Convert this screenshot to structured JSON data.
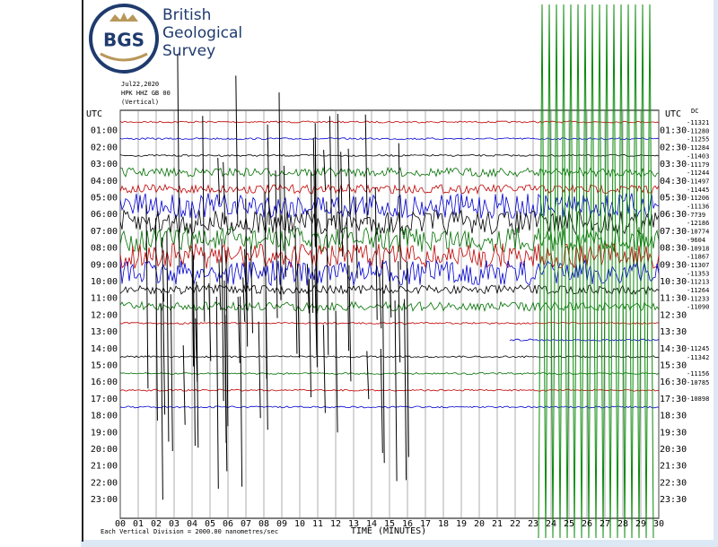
{
  "logo": {
    "mark": "BGS",
    "name": [
      "British",
      "Geological",
      "Survey"
    ]
  },
  "header": {
    "date": "Jul22,2020",
    "station": "HPK HHZ GB 00",
    "component": "(Vertical)"
  },
  "left_axis": {
    "title": "UTC",
    "labels": [
      "01:00",
      "02:00",
      "03:00",
      "04:00",
      "05:00",
      "06:00",
      "07:00",
      "08:00",
      "09:00",
      "10:00",
      "11:00",
      "12:00",
      "13:00",
      "14:00",
      "15:00",
      "16:00",
      "17:00",
      "18:00",
      "19:00",
      "20:00",
      "21:00",
      "22:00",
      "23:00"
    ]
  },
  "right_axis": {
    "title": "UTC",
    "labels": [
      "01:30",
      "02:30",
      "03:30",
      "04:30",
      "05:30",
      "06:30",
      "07:30",
      "08:30",
      "09:30",
      "10:30",
      "11:30",
      "12:30",
      "13:30",
      "14:30",
      "15:30",
      "16:30",
      "17:30",
      "18:30",
      "19:30",
      "20:30",
      "21:30",
      "22:30",
      "23:30"
    ]
  },
  "dc": {
    "title": "DC",
    "values": [
      -11321,
      -11280,
      -11255,
      -11284,
      -11403,
      -11179,
      -11244,
      -11497,
      -11445,
      -11206,
      -11136,
      -7739,
      -12186,
      -10774,
      -9604,
      -10918,
      -11867,
      -11307,
      -11353,
      -11213,
      -11264,
      -11233,
      -11090,
      -11245,
      -11342,
      -11156,
      -10785,
      -10898
    ]
  },
  "x_axis": {
    "ticks": [
      "00",
      "01",
      "02",
      "03",
      "04",
      "05",
      "06",
      "07",
      "08",
      "09",
      "10",
      "11",
      "12",
      "13",
      "14",
      "15",
      "16",
      "17",
      "18",
      "19",
      "20",
      "21",
      "22",
      "23",
      "24",
      "25",
      "26",
      "27",
      "28",
      "29",
      "30"
    ],
    "title": "TIME (MINUTES)"
  },
  "footer": "Each Vertical Division = 2000.00 nanometres/sec"
}
